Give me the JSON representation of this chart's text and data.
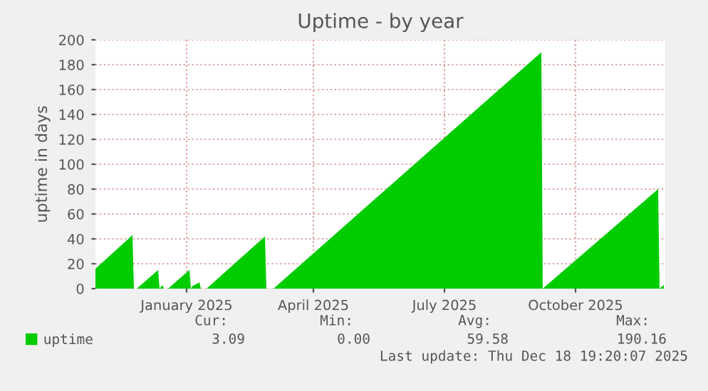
{
  "chart_data": {
    "type": "area",
    "title": "Uptime - by year",
    "ylabel": "uptime in days",
    "x": [
      "2024-11-13",
      "2024-12-09",
      "2024-12-10",
      "2024-12-12",
      "2024-12-27",
      "2024-12-28",
      "2024-12-30",
      "2024-12-31",
      "2025-01-03",
      "2025-01-18",
      "2025-01-19",
      "2025-01-20",
      "2025-01-25",
      "2025-01-26",
      "2025-01-30",
      "2025-03-12",
      "2025-03-13",
      "2025-03-18",
      "2025-09-22",
      "2025-09-23",
      "2025-09-25",
      "2025-12-13",
      "2025-12-14",
      "2025-12-17"
    ],
    "series": [
      {
        "name": "uptime",
        "color": "#00cc00",
        "values": [
          16,
          43,
          0,
          0,
          15,
          0,
          3,
          0,
          0,
          15,
          0,
          2,
          5,
          0,
          0,
          42,
          0,
          0,
          190,
          0,
          2,
          80,
          0,
          3
        ]
      }
    ],
    "xlim": [
      "2024-11-13",
      "2025-12-18"
    ],
    "xticks": [
      {
        "value": "2025-01-16",
        "label": "January 2025"
      },
      {
        "value": "2025-04-15",
        "label": "April 2025"
      },
      {
        "value": "2025-07-16",
        "label": "July 2025"
      },
      {
        "value": "2025-10-16",
        "label": "October 2025"
      }
    ],
    "ylim": [
      0,
      200
    ],
    "yticks": [
      0,
      20,
      40,
      60,
      80,
      100,
      120,
      140,
      160,
      180,
      200
    ],
    "grid": true,
    "legend": "bottom left",
    "annotations": [
      "Cur:",
      "Min:",
      "Avg:",
      "Max:",
      "3.09",
      "0.00",
      "59.58",
      "190.16",
      "Last update: Thu Dec 18 19:20:07 2025"
    ]
  }
}
